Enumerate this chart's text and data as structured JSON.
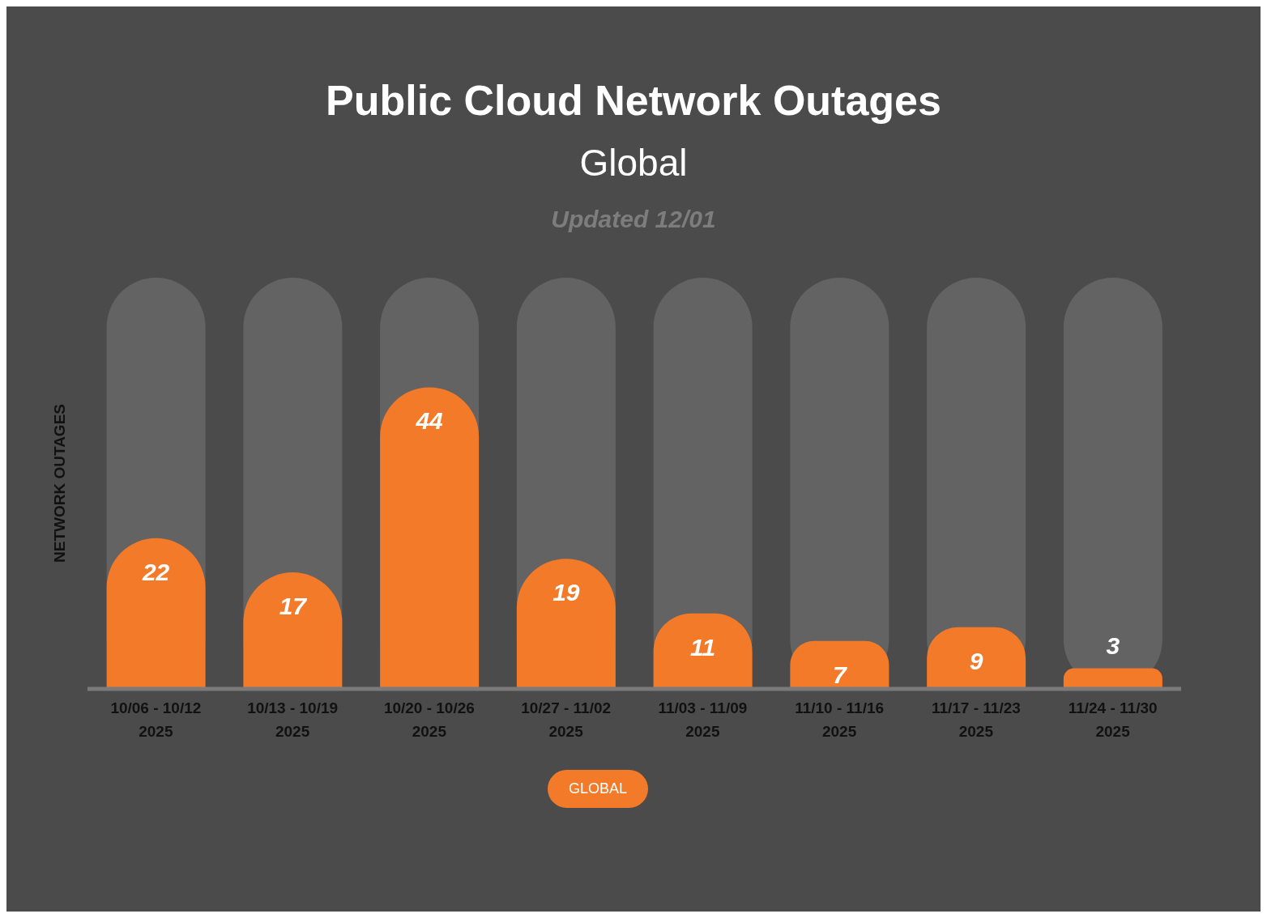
{
  "chart_data": {
    "type": "bar",
    "title": "Public Cloud Network Outages",
    "subtitle": "Global",
    "annotations": [
      "Updated 12/01"
    ],
    "ylabel": "NETWORK OUTAGES",
    "categories": [
      "10/06 - 10/12 2025",
      "10/13 - 10/19 2025",
      "10/20 - 10/26 2025",
      "10/27 - 11/02 2025",
      "11/03 - 11/09 2025",
      "11/10 - 11/16 2025",
      "11/17 - 11/23 2025",
      "11/24 - 11/30 2025"
    ],
    "series": [
      {
        "name": "GLOBAL",
        "color": "#f27a28",
        "values": [
          22,
          17,
          44,
          19,
          11,
          7,
          9,
          3
        ]
      }
    ],
    "data_labels": true,
    "legend": "bottom"
  }
}
